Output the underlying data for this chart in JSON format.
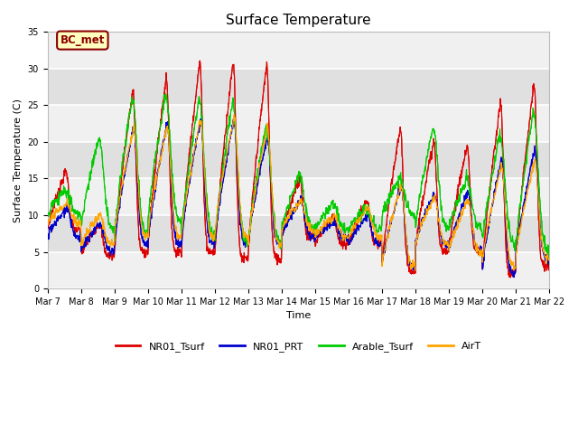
{
  "title": "Surface Temperature",
  "ylabel": "Surface Temperature (C)",
  "xlabel": "Time",
  "ylim": [
    0,
    35
  ],
  "annotation": "BC_met",
  "annotation_color": "#8B0000",
  "annotation_bg": "#FFFFC0",
  "background_color": "#E8E8E8",
  "grid_color": "white",
  "legend_labels": [
    "NR01_Tsurf",
    "NR01_PRT",
    "Arable_Tsurf",
    "AirT"
  ],
  "line_colors": [
    "#DD0000",
    "#0000CC",
    "#00CC00",
    "#FFA500"
  ],
  "xtick_labels": [
    "Mar 7",
    "Mar 8",
    "Mar 9",
    "Mar 10",
    "Mar 11",
    "Mar 12",
    "Mar 13",
    "Mar 14",
    "Mar 15",
    "Mar 16",
    "Mar 17",
    "Mar 18",
    "Mar 19",
    "Mar 20",
    "Mar 21",
    "Mar 22"
  ],
  "yticks": [
    0,
    5,
    10,
    15,
    20,
    25,
    30,
    35
  ],
  "title_fontsize": 11,
  "tick_fontsize": 7,
  "axis_label_fontsize": 8,
  "legend_fontsize": 8
}
